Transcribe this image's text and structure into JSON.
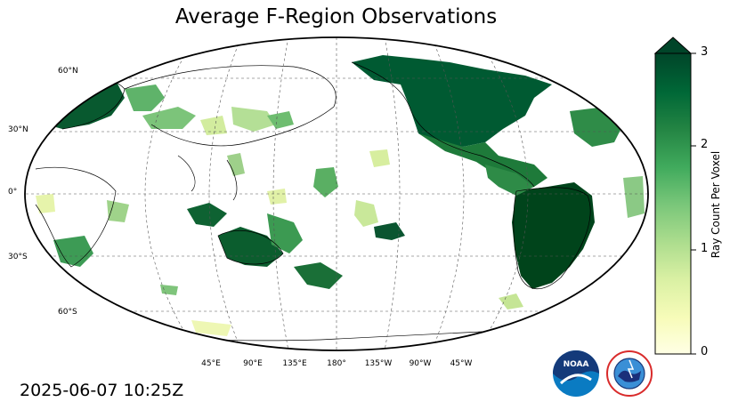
{
  "map": {
    "title": "Average F-Region Observations",
    "timestamp": "2025-06-07 10:25Z",
    "projection": "robinson",
    "central_longitude": 180,
    "gridlines": true,
    "lat_labels": [
      "60°N",
      "30°N",
      "0°",
      "30°S",
      "60°S"
    ],
    "lon_labels": [
      "45°E",
      "90°E",
      "135°E",
      "180°",
      "135°W",
      "90°W",
      "45°W"
    ]
  },
  "colorbar": {
    "label": "Ray Count Per Voxel",
    "colormap": "YlGn",
    "ticks": [
      "0",
      "1",
      "2",
      "3"
    ],
    "min": 0,
    "max": 3,
    "extend": "max",
    "colors": [
      "#ffffe5",
      "#f7fcb9",
      "#d9f0a3",
      "#addd8e",
      "#78c679",
      "#41ab5d",
      "#238443",
      "#006837",
      "#004529"
    ]
  },
  "logos": {
    "noaa": "NOAA",
    "nws": "NATIONAL WEATHER SERVICE"
  }
}
